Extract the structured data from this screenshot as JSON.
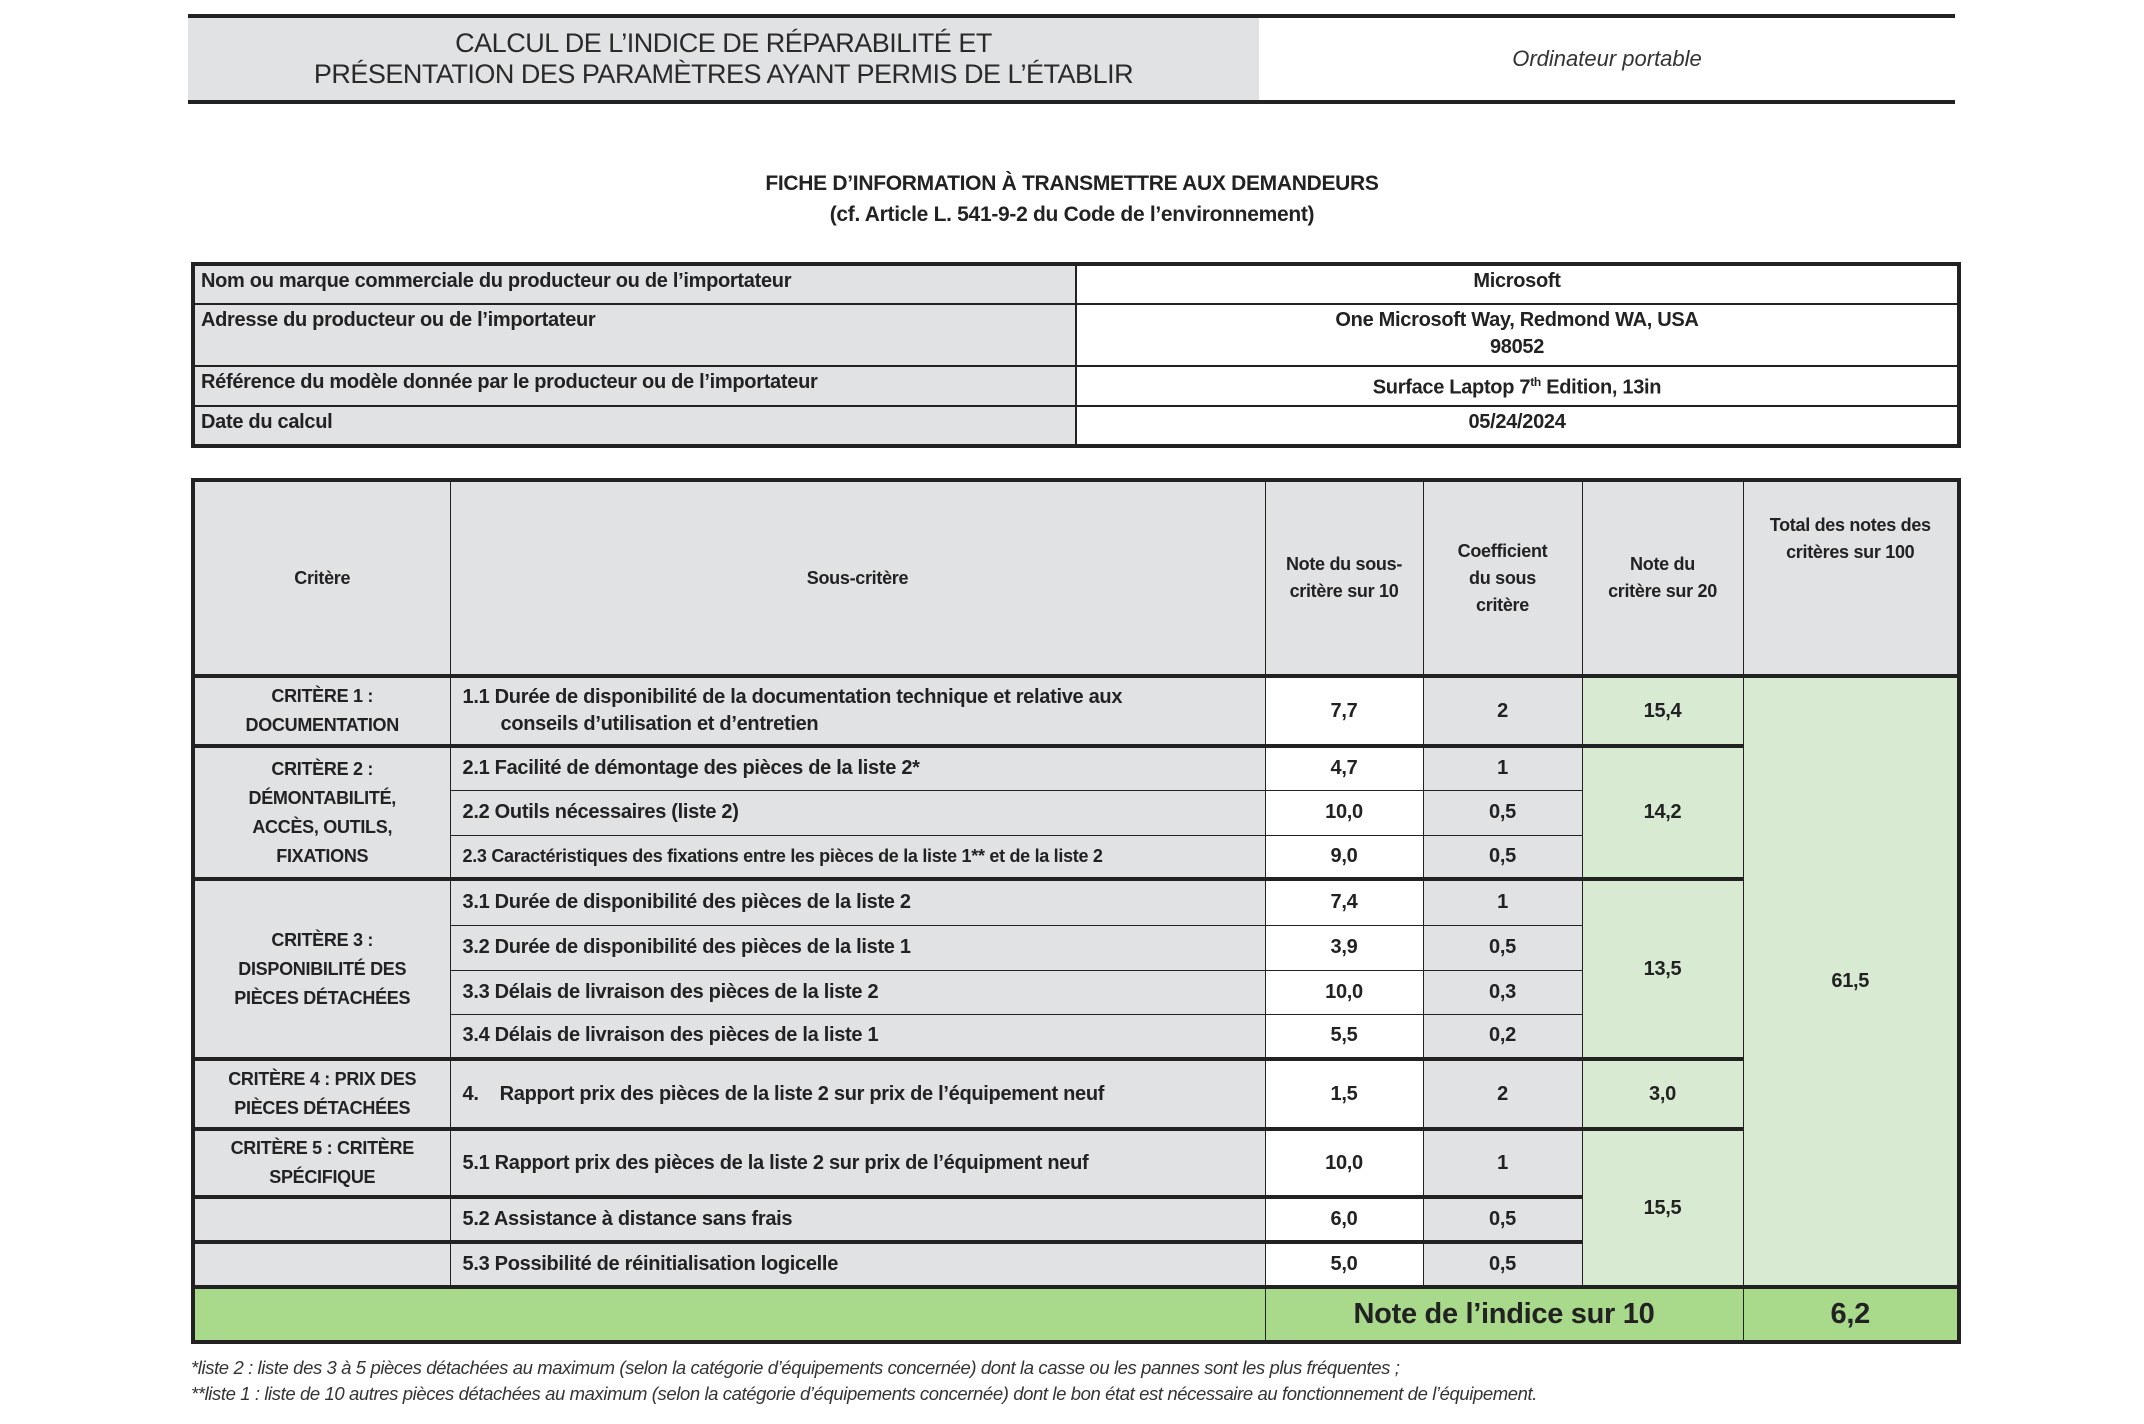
{
  "header": {
    "title_line1": "CALCUL DE L’INDICE DE RÉPARABILITÉ ET",
    "title_line2": "PRÉSENTATION DES PARAMÈTRES AYANT PERMIS DE L’ÉTABLIR",
    "category": "Ordinateur portable"
  },
  "fiche": {
    "title": "FICHE D’INFORMATION À TRANSMETTRE AUX DEMANDEURS",
    "subtitle": "(cf. Article L. 541-9-2 du Code de l’environnement)"
  },
  "info": {
    "brand_label": "Nom ou marque commerciale du producteur ou de l’importateur",
    "brand_value": "Microsoft",
    "address_label": "Adresse du producteur ou de l’importateur",
    "address_line1": "One Microsoft Way, Redmond WA, USA",
    "address_line2": "98052",
    "model_label": "Référence du modèle donnée par le producteur ou de l’importateur",
    "model_prefix": "Surface Laptop 7",
    "model_sup": "th",
    "model_suffix": " Edition, 13in",
    "date_label": "Date du calcul",
    "date_value": "05/24/2024"
  },
  "table": {
    "headers": {
      "critere": "Critère",
      "sous_critere": "Sous-critère",
      "note_sous_l1": "Note du sous-",
      "note_sous_l2": "critère sur 10",
      "coef_l1": "Coefficient",
      "coef_l2": "du sous",
      "coef_l3": "critère",
      "note_crit_l1": "Note du",
      "note_crit_l2": "critère sur 20",
      "total_l1": "Total des notes des",
      "total_l2": "critères sur 100"
    },
    "criteria": [
      {
        "l1": "CRITÈRE 1 :",
        "l2": "DOCUMENTATION",
        "note": "15,4"
      },
      {
        "l1": "CRITÈRE 2 :",
        "l2": "DÉMONTABILITÉ,",
        "l3": "ACCÈS, OUTILS,",
        "l4": "FIXATIONS",
        "note": "14,2"
      },
      {
        "l1": "CRITÈRE 3 :",
        "l2": "DISPONIBILITÉ DES",
        "l3": "PIÈCES DÉTACHÉES",
        "note": "13,5"
      },
      {
        "l1": "CRITÈRE 4 : PRIX DES",
        "l2": "PIÈCES DÉTACHÉES",
        "note": "3,0"
      },
      {
        "l1": "CRITÈRE 5 : CRITÈRE",
        "l2": "SPÉCIFIQUE",
        "note": "15,5"
      }
    ],
    "rows": [
      {
        "label": "1.1  Durée de disponibilité de la documentation technique et relative aux",
        "label2": "conseils d’utilisation et d’entretien",
        "note": "7,7",
        "coef": "2"
      },
      {
        "label": "2.1  Facilité de démontage des pièces de la liste 2*",
        "note": "4,7",
        "coef": "1"
      },
      {
        "label": "2.2 Outils nécessaires (liste 2)",
        "note": "10,0",
        "coef": "0,5"
      },
      {
        "label": "2.3 Caractéristiques des fixations entre les pièces de la liste 1** et de la liste 2",
        "note": "9,0",
        "coef": "0,5"
      },
      {
        "label": "3.1  Durée de disponibilité des pièces de la liste 2",
        "note": "7,4",
        "coef": "1"
      },
      {
        "label": "3.2 Durée de disponibilité des pièces de la liste 1",
        "note": "3,9",
        "coef": "0,5"
      },
      {
        "label": "3.3 Délais de livraison des pièces de la liste 2",
        "note": "10,0",
        "coef": "0,3"
      },
      {
        "label": "3.4 Délais de livraison des pièces de la liste 1",
        "note": "5,5",
        "coef": "0,2"
      },
      {
        "label": "4.    Rapport prix des pièces de la liste 2 sur prix de l’équipement neuf",
        "note": "1,5",
        "coef": "2"
      },
      {
        "label": "5.1  Rapport prix des pièces de la liste 2 sur prix de l’équipment neuf",
        "note": "10,0",
        "coef": "1"
      },
      {
        "label": "5.2 Assistance à distance sans frais",
        "note": "6,0",
        "coef": "0,5"
      },
      {
        "label": "5.3 Possibilité de réinitialisation logicelle",
        "note": "5,0",
        "coef": "0,5"
      }
    ],
    "total": "61,5",
    "final_label": "Note de l’indice sur 10",
    "final_value": "6,2"
  },
  "footnotes": {
    "liste2": "*liste 2 : liste des 3 à 5 pièces détachées au maximum (selon la catégorie d’équipements concernée) dont la casse ou les pannes sont les plus fréquentes ;",
    "liste1": "**liste 1 : liste de 10 autres pièces détachées au maximum (selon la catégorie d’équipements concernée) dont le bon état est nécessaire au fonctionnement de l’équipement."
  },
  "colors": {
    "gray": "#e1e2e4",
    "light_green": "#d9ead3",
    "green": "#a9d98a"
  }
}
